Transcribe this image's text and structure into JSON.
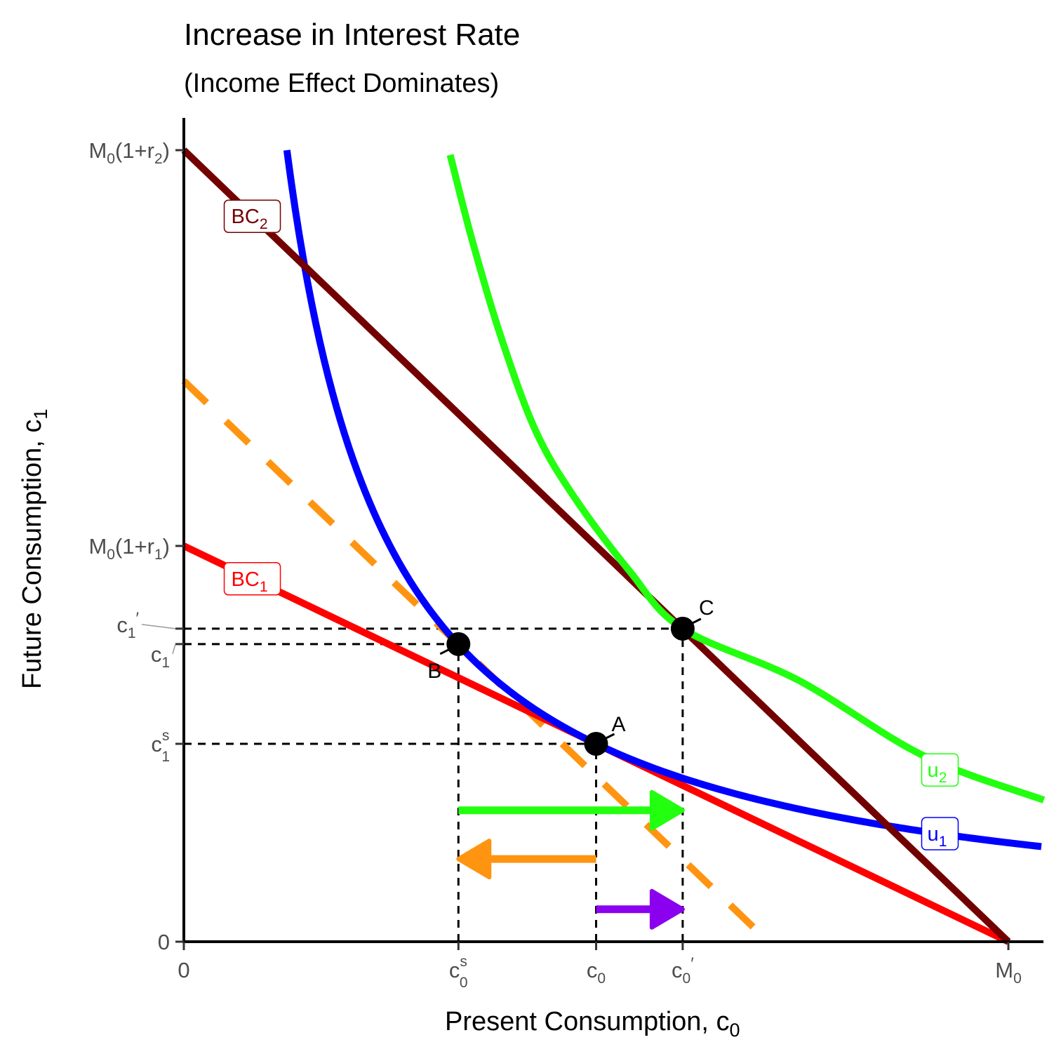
{
  "chart_data": {
    "type": "line",
    "title": "Increase in Interest Rate",
    "subtitle": "(Income Effect Dominates)",
    "xlabel": "Present Consumption, c",
    "xlabel_sub": "0",
    "ylabel": "Future Consumption, c",
    "ylabel_sub": "1",
    "xlim": [
      0,
      10.43
    ],
    "ylim": [
      0,
      20.8
    ],
    "grid": false,
    "legend": "none",
    "x_ticks": [
      {
        "value": 0,
        "label": "0",
        "sub": "",
        "sup": "",
        "prime": ""
      },
      {
        "value": 3.33,
        "label": "c",
        "sub": "0",
        "sup": "s",
        "prime": ""
      },
      {
        "value": 5.0,
        "label": "c",
        "sub": "0",
        "sup": "",
        "prime": ""
      },
      {
        "value": 6.05,
        "label": "c",
        "sub": "0",
        "sup": "",
        "prime": "′"
      },
      {
        "value": 10.0,
        "label": "M",
        "sub": "0",
        "sup": "",
        "prime": ""
      }
    ],
    "y_ticks": [
      {
        "value": 0,
        "label": "0",
        "sub": "",
        "sup": "",
        "prime": "",
        "tail": ""
      },
      {
        "value": 5.0,
        "label": "c",
        "sub": "1",
        "sup": "s",
        "prime": "",
        "tail": ""
      },
      {
        "value": 7.52,
        "label": "c",
        "sub": "1",
        "sup": "",
        "prime": "",
        "tail": ""
      },
      {
        "value": 7.91,
        "label": "c",
        "sub": "1",
        "sup": "",
        "prime": "′",
        "tail": ""
      },
      {
        "value": 10.0,
        "label": "M",
        "sub": "0",
        "sup": "",
        "prime": "",
        "tail": "(1+r",
        "tail_sub": "1",
        "tail_end": ")"
      },
      {
        "value": 20.0,
        "label": "M",
        "sub": "0",
        "sup": "",
        "prime": "",
        "tail": "(1+r",
        "tail_sub": "2",
        "tail_end": ")"
      }
    ],
    "series": [
      {
        "name": "BC1",
        "label": "BC",
        "label_sub": "1",
        "color": "#ff0000",
        "kind": "line",
        "dashed": false,
        "x": [
          0,
          10
        ],
        "y": [
          10,
          0
        ],
        "label_at": [
          0.83,
          9.17
        ]
      },
      {
        "name": "BC2",
        "label": "BC",
        "label_sub": "2",
        "color": "#730000",
        "kind": "line",
        "dashed": false,
        "x": [
          0,
          10
        ],
        "y": [
          20,
          0
        ],
        "label_at": [
          0.83,
          18.33
        ]
      },
      {
        "name": "Compensated BC",
        "label": "",
        "label_sub": "",
        "color": "#ff9411",
        "kind": "line",
        "dashed": true,
        "x": [
          0,
          7.09
        ],
        "y": [
          14.17,
          0
        ],
        "label_at": null
      },
      {
        "name": "u1",
        "label": "u",
        "label_sub": "1",
        "color": "#0000ff",
        "kind": "curve",
        "dashed": false,
        "x": [
          1.25,
          1.5,
          1.83,
          2.0,
          2.28,
          2.5,
          3.0,
          3.33,
          4.0,
          5.0,
          6.0,
          7.0,
          8.0,
          9.0,
          10.0,
          10.43
        ],
        "y": [
          20.0,
          16.67,
          13.66,
          12.5,
          10.96,
          10.0,
          8.33,
          7.5,
          6.25,
          5.0,
          4.17,
          3.57,
          3.13,
          2.78,
          2.5,
          2.4
        ],
        "label_at": [
          9.17,
          2.73
        ]
      },
      {
        "name": "u2",
        "label": "u",
        "label_sub": "2",
        "color": "#22ff0f",
        "kind": "curve",
        "dashed": false,
        "x": [
          3.23,
          3.5,
          3.84,
          4.26,
          4.72,
          5.4,
          6.05,
          7.46,
          8.97,
          10.43
        ],
        "y": [
          19.88,
          17.7,
          15.32,
          12.94,
          11.28,
          9.38,
          7.91,
          6.6,
          4.7,
          3.58
        ],
        "label_at": [
          9.17,
          4.34
        ]
      }
    ],
    "points": [
      {
        "name": "A",
        "x": 5.0,
        "y": 5.0
      },
      {
        "name": "B",
        "x": 3.33,
        "y": 7.52
      },
      {
        "name": "C",
        "x": 6.05,
        "y": 7.91
      }
    ],
    "guides": [
      {
        "name": "c1-prime-guide",
        "from": [
          0,
          7.91
        ],
        "to": [
          6.05,
          7.91
        ]
      },
      {
        "name": "c1-guide",
        "from": [
          0,
          7.52
        ],
        "to": [
          3.33,
          7.52
        ]
      },
      {
        "name": "c1s-guide",
        "from": [
          0,
          5.0
        ],
        "to": [
          5.0,
          5.0
        ]
      },
      {
        "name": "c0s-guide",
        "from": [
          3.33,
          0
        ],
        "to": [
          3.33,
          7.52
        ]
      },
      {
        "name": "c0-guide",
        "from": [
          5.0,
          0
        ],
        "to": [
          5.0,
          5.0
        ]
      },
      {
        "name": "c0-prime-guide",
        "from": [
          6.05,
          0
        ],
        "to": [
          6.05,
          7.91
        ]
      }
    ],
    "arrows": [
      {
        "name": "total-effect",
        "color": "#22ff0f",
        "from": [
          3.33,
          3.32
        ],
        "to": [
          6.05,
          3.32
        ]
      },
      {
        "name": "substitution-effect",
        "color": "#ff9411",
        "from": [
          5.0,
          2.09
        ],
        "to": [
          3.33,
          2.09
        ]
      },
      {
        "name": "income-effect",
        "color": "#8b00ee",
        "from": [
          5.0,
          0.82
        ],
        "to": [
          6.05,
          0.82
        ]
      }
    ]
  }
}
